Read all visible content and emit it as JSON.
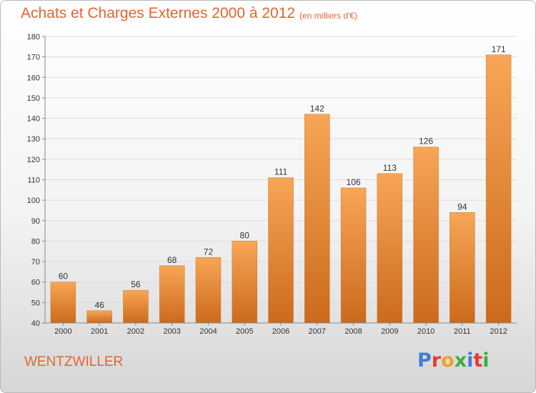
{
  "header": {
    "title": "Achats et Charges Externes 2000 à 2012",
    "subtitle": "(en milliers d'€)"
  },
  "footer": {
    "location": "WENTZWILLER",
    "logo_text": "Proxiti",
    "logo_colors": [
      "#3d7fd6",
      "#e63a2e",
      "#f0a02a",
      "#3fae3f",
      "#3d7fd6",
      "#e63a2e",
      "#3fae3f"
    ]
  },
  "chart_data": {
    "type": "bar",
    "title": "Achats et Charges Externes 2000 à 2012",
    "subtitle": "(en milliers d'€)",
    "categories": [
      "2000",
      "2001",
      "2002",
      "2003",
      "2004",
      "2005",
      "2006",
      "2007",
      "2008",
      "2009",
      "2010",
      "2011",
      "2012"
    ],
    "values": [
      60,
      46,
      56,
      68,
      72,
      80,
      111,
      142,
      106,
      113,
      126,
      94,
      171
    ],
    "data_labels": [
      "60",
      "46",
      "56",
      "68",
      "72",
      "80",
      "111",
      "142",
      "106",
      "113",
      "126",
      "94",
      "171"
    ],
    "xlabel": "",
    "ylabel": "",
    "ylim": [
      40,
      180
    ],
    "yticks": [
      40,
      50,
      60,
      70,
      80,
      90,
      100,
      110,
      120,
      130,
      140,
      150,
      160,
      170,
      180
    ],
    "ytick_labels": [
      "40",
      "50",
      "60",
      "70",
      "80",
      "90",
      "100",
      "110",
      "120",
      "130",
      "140",
      "150",
      "160",
      "170",
      "180"
    ],
    "grid": true,
    "bar_color": "#f0913a"
  }
}
